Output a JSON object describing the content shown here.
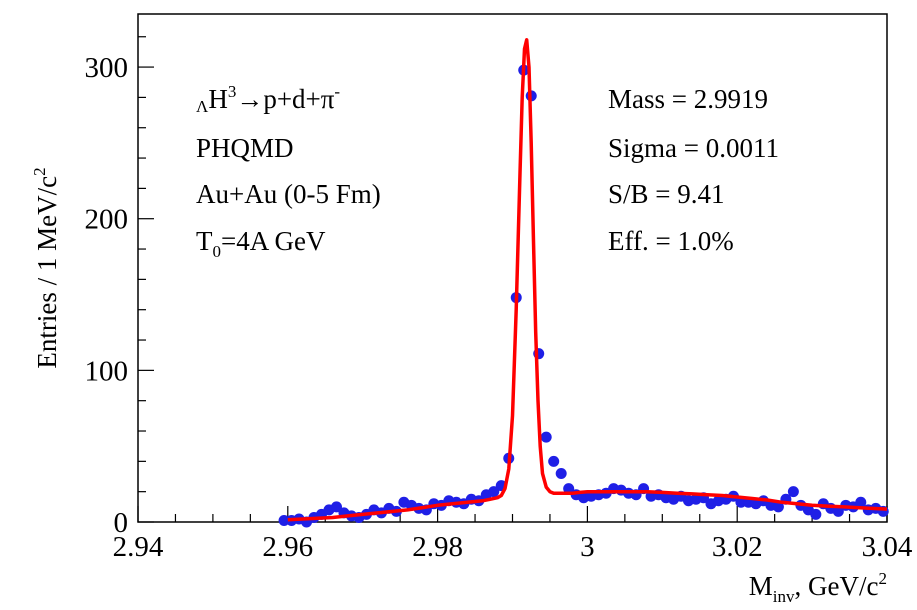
{
  "chart_data": {
    "type": "scatter",
    "title": "",
    "xlabel": {
      "main": "M",
      "sub": "inv",
      "rest": ", GeV/c",
      "sup": "2"
    },
    "ylabel": {
      "main": "Entries / 1 MeV/c",
      "sup": "2"
    },
    "xlim": [
      2.94,
      3.04
    ],
    "ylim": [
      0,
      335
    ],
    "x_ticks": [
      2.94,
      2.96,
      2.98,
      3.0,
      3.02,
      3.04
    ],
    "x_tick_labels": [
      "2.94",
      "2.96",
      "2.98",
      "3",
      "3.02",
      "3.04"
    ],
    "y_ticks": [
      0,
      100,
      200,
      300
    ],
    "y_tick_labels": [
      "0",
      "100",
      "200",
      "300"
    ],
    "grid": false,
    "left_annotation": {
      "reaction": {
        "pre_sub": "Λ",
        "base": "H",
        "sup": "3",
        "rest": "→p+d+π",
        "end_sup": "-"
      },
      "model": "PHQMD",
      "system": "Au+Au (0-5 Fm)",
      "energy": {
        "base": "T",
        "sub": "0",
        "rest": "=4A GeV"
      }
    },
    "right_annotation": {
      "mass": "Mass = 2.9919",
      "sigma": "Sigma = 0.0011",
      "sb": "S/B = 9.41",
      "eff": "Eff. = 1.0%"
    },
    "series": [
      {
        "marker": "circle",
        "color": "#1f1fe6",
        "x": [
          2.9595,
          2.9605,
          2.9615,
          2.9625,
          2.9635,
          2.9645,
          2.9655,
          2.9665,
          2.9675,
          2.9685,
          2.9695,
          2.9705,
          2.9715,
          2.9725,
          2.9735,
          2.9745,
          2.9755,
          2.9765,
          2.9775,
          2.9785,
          2.9795,
          2.9805,
          2.9815,
          2.9825,
          2.9835,
          2.9845,
          2.9855,
          2.9865,
          2.9875,
          2.9885,
          2.9895,
          2.9905,
          2.9915,
          2.9925,
          2.9935,
          2.9945,
          2.9955,
          2.9965,
          2.9975,
          2.9985,
          2.9995,
          3.0005,
          3.0015,
          3.0025,
          3.0035,
          3.0045,
          3.0055,
          3.0065,
          3.0075,
          3.0085,
          3.0095,
          3.0105,
          3.0115,
          3.0125,
          3.0135,
          3.0145,
          3.0155,
          3.0165,
          3.0175,
          3.0185,
          3.0195,
          3.0205,
          3.0215,
          3.0225,
          3.0235,
          3.0245,
          3.0255,
          3.0265,
          3.0275,
          3.0285,
          3.0295,
          3.0305,
          3.0315,
          3.0325,
          3.0335,
          3.0345,
          3.0355,
          3.0365,
          3.0375,
          3.0385,
          3.0395
        ],
        "y": [
          1,
          1,
          2,
          0,
          3,
          5,
          8,
          10,
          6,
          4,
          3,
          5,
          8,
          6,
          9,
          7,
          13,
          11,
          9,
          8,
          12,
          11,
          14,
          13,
          12,
          15,
          14,
          18,
          20,
          24,
          42,
          148,
          298,
          281,
          111,
          56,
          40,
          32,
          22,
          18,
          16,
          17,
          18,
          19,
          22,
          21,
          19,
          18,
          22,
          17,
          18,
          16,
          15,
          17,
          14,
          15,
          16,
          12,
          14,
          15,
          17,
          13,
          13,
          12,
          14,
          11,
          10,
          15,
          20,
          11,
          8,
          5,
          12,
          9,
          7,
          11,
          10,
          13,
          8,
          9,
          7
        ]
      }
    ],
    "fit": {
      "color": "#ff0000",
      "x": [
        2.96,
        2.962,
        2.964,
        2.966,
        2.968,
        2.97,
        2.972,
        2.974,
        2.976,
        2.978,
        2.98,
        2.982,
        2.984,
        2.986,
        2.987,
        2.988,
        2.9885,
        2.989,
        2.9895,
        2.99,
        2.9905,
        2.991,
        2.9913,
        2.9916,
        2.9919,
        2.9922,
        2.9925,
        2.9928,
        2.9931,
        2.9934,
        2.9937,
        2.994,
        2.9945,
        2.995,
        2.9955,
        2.996,
        2.997,
        2.998,
        2.999,
        3.0,
        3.001,
        3.002,
        3.004,
        3.006,
        3.008,
        3.01,
        3.012,
        3.014,
        3.016,
        3.018,
        3.02,
        3.022,
        3.024,
        3.026,
        3.028,
        3.03,
        3.032,
        3.034,
        3.036,
        3.038,
        3.04
      ],
      "y": [
        1.5,
        2,
        2.5,
        3,
        4,
        5,
        6,
        7,
        8,
        9.5,
        11,
        12,
        13,
        14,
        15,
        16,
        17.5,
        22,
        35,
        70,
        140,
        230,
        280,
        312,
        318,
        300,
        250,
        185,
        125,
        80,
        50,
        32,
        23,
        20,
        19,
        19,
        19,
        19,
        19.5,
        20,
        20,
        20,
        20,
        20,
        20,
        19.5,
        19,
        18.5,
        18,
        17.5,
        16.5,
        15.5,
        14.5,
        13,
        12,
        11,
        10.5,
        10,
        9.5,
        9,
        8.5
      ]
    }
  }
}
